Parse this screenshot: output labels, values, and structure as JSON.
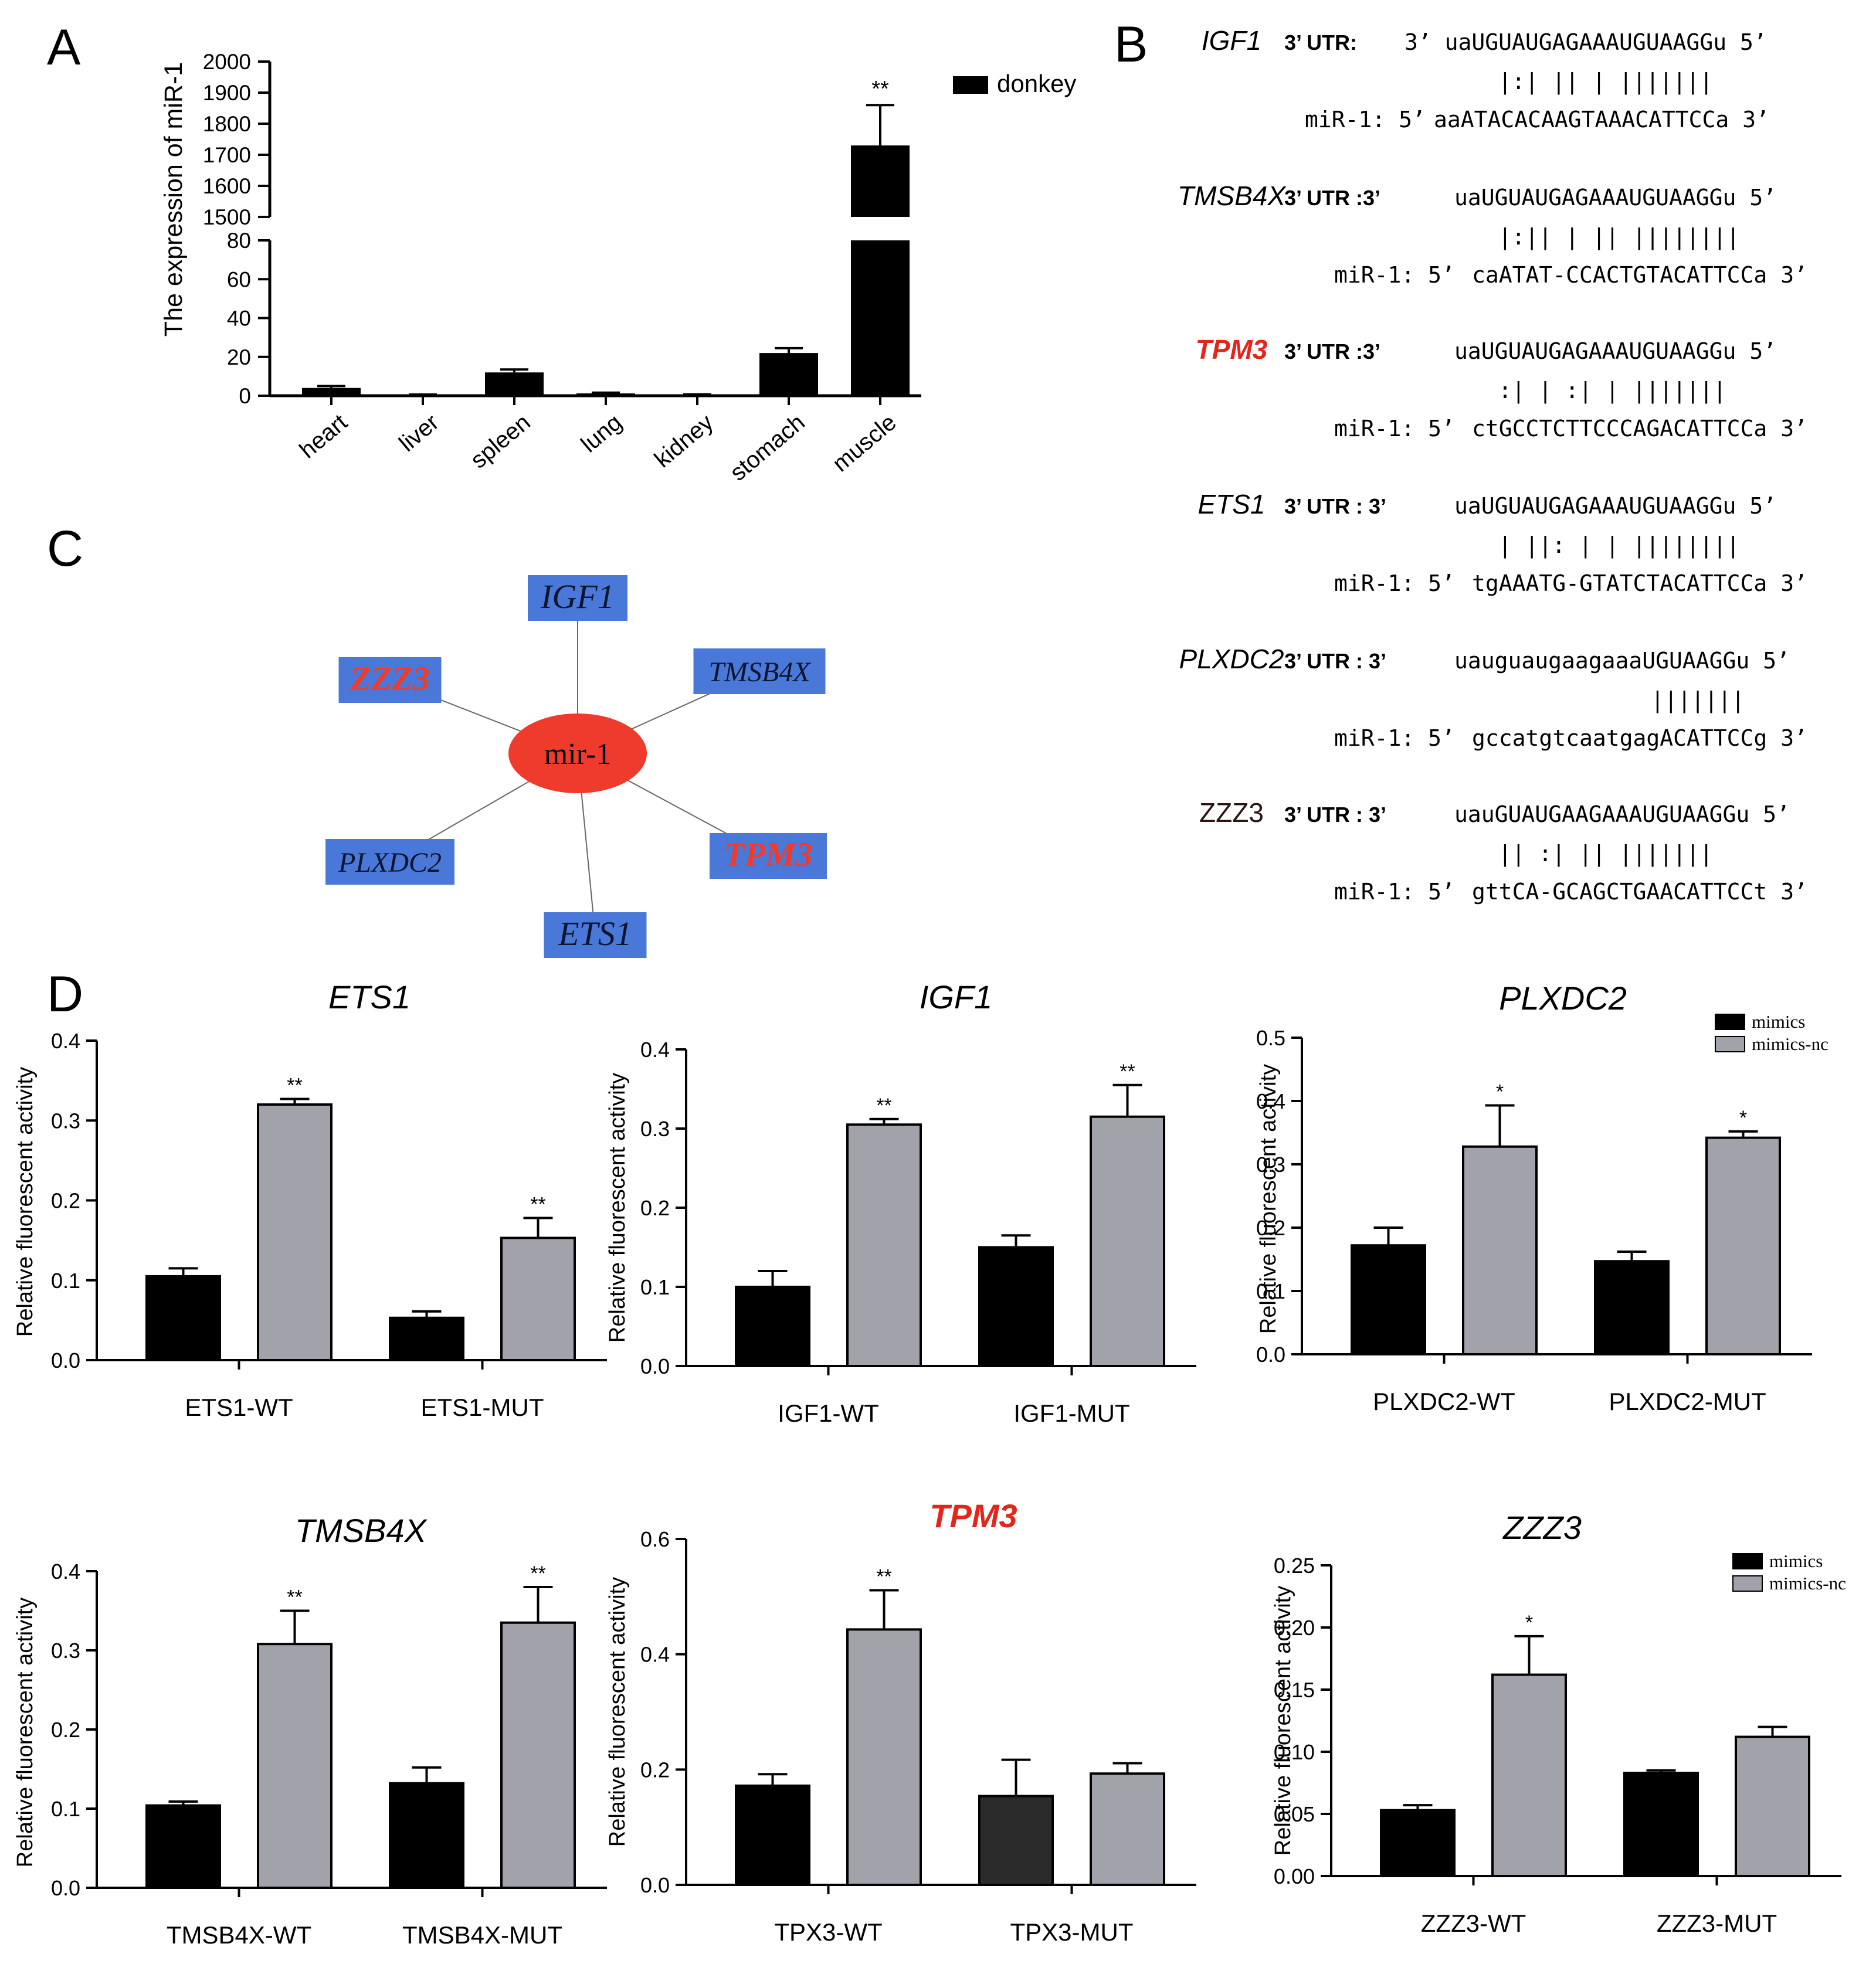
{
  "colors": {
    "bar_black": "#000000",
    "bar_gray": "#a2a2aa",
    "bar_dark": "#2b2b2b",
    "node_blue": "#4a78d8",
    "node_red": "#ef3b2c",
    "red_text": "#e1261c",
    "axis": "#000000"
  },
  "panel_labels": {
    "A": "A",
    "B": "B",
    "C": "C",
    "D": "D"
  },
  "chart_data": [
    {
      "id": "A",
      "type": "bar",
      "title": "",
      "ylabel": "The expression of miR-1",
      "xlabel": "",
      "legend": [
        "donkey"
      ],
      "categories": [
        "heart",
        "liver",
        "spleen",
        "lung",
        "kidney",
        "stomach",
        "muscle"
      ],
      "values": [
        4,
        0.4,
        12,
        1.2,
        0.5,
        22,
        1730
      ],
      "errors": [
        1,
        0.2,
        1.5,
        0.4,
        0.2,
        2.5,
        130
      ],
      "significance": [
        "",
        "",
        "",
        "",
        "",
        "",
        "**"
      ],
      "y_lower_range": [
        0,
        80
      ],
      "y_lower_ticks": [
        "0",
        "20",
        "40",
        "60",
        "80"
      ],
      "y_upper_range": [
        1500,
        2000
      ],
      "y_upper_ticks": [
        "1500",
        "1600",
        "1700",
        "1800",
        "1900",
        "2000"
      ]
    },
    {
      "id": "ETS1",
      "type": "bar",
      "title": "ETS1",
      "title_color": "black",
      "ylabel": "Relative fluorescent activity",
      "ylim": [
        0,
        0.4
      ],
      "yticks": [
        "0.0",
        "0.1",
        "0.2",
        "0.3",
        "0.4"
      ],
      "groups": [
        "ETS1-WT",
        "ETS1-MUT"
      ],
      "series": [
        {
          "name": "mimics",
          "values": [
            0.105,
            0.053
          ],
          "errors": [
            0.01,
            0.008
          ]
        },
        {
          "name": "mimics-nc",
          "values": [
            0.32,
            0.153
          ],
          "errors": [
            0.007,
            0.025
          ]
        }
      ],
      "significance": [
        "**",
        "**"
      ]
    },
    {
      "id": "IGF1",
      "type": "bar",
      "title": "IGF1",
      "title_color": "black",
      "ylabel": "Relative fluorescent activity",
      "ylim": [
        0,
        0.4
      ],
      "yticks": [
        "0.0",
        "0.1",
        "0.2",
        "0.3",
        "0.4"
      ],
      "groups": [
        "IGF1-WT",
        "IGF1-MUT"
      ],
      "series": [
        {
          "name": "mimics",
          "values": [
            0.1,
            0.15
          ],
          "errors": [
            0.02,
            0.015
          ]
        },
        {
          "name": "mimics-nc",
          "values": [
            0.305,
            0.315
          ],
          "errors": [
            0.007,
            0.04
          ]
        }
      ],
      "significance": [
        "**",
        "**"
      ]
    },
    {
      "id": "PLXDC2",
      "type": "bar",
      "title": "PLXDC2",
      "title_color": "black",
      "ylabel": "Relative fluorescent activity",
      "ylim": [
        0,
        0.5
      ],
      "yticks": [
        "0.0",
        "0.1",
        "0.2",
        "0.3",
        "0.4",
        "0.5"
      ],
      "groups": [
        "PLXDC2-WT",
        "PLXDC2-MUT"
      ],
      "series": [
        {
          "name": "mimics",
          "values": [
            0.172,
            0.147
          ],
          "errors": [
            0.028,
            0.015
          ]
        },
        {
          "name": "mimics-nc",
          "values": [
            0.328,
            0.342
          ],
          "errors": [
            0.065,
            0.01
          ]
        }
      ],
      "significance": [
        "*",
        "*"
      ],
      "legend": [
        "mimics",
        "mimics-nc"
      ]
    },
    {
      "id": "TMSB4X",
      "type": "bar",
      "title": "TMSB4X",
      "title_color": "black",
      "ylabel": "Relative fluorescent activity",
      "ylim": [
        0,
        0.4
      ],
      "yticks": [
        "0.0",
        "0.1",
        "0.2",
        "0.3",
        "0.4"
      ],
      "groups": [
        "TMSB4X-WT",
        "TMSB4X-MUT"
      ],
      "series": [
        {
          "name": "mimics",
          "values": [
            0.104,
            0.132
          ],
          "errors": [
            0.005,
            0.02
          ]
        },
        {
          "name": "mimics-nc",
          "values": [
            0.308,
            0.335
          ],
          "errors": [
            0.042,
            0.045
          ]
        }
      ],
      "significance": [
        "**",
        "**"
      ]
    },
    {
      "id": "TPM3",
      "type": "bar",
      "title": "TPM3",
      "title_color": "red",
      "ylabel": "Relative fluorescent activity",
      "ylim": [
        0,
        0.6
      ],
      "yticks": [
        "0.0",
        "0.2",
        "0.4",
        "0.6"
      ],
      "groups": [
        "TPX3-WT",
        "TPX3-MUT"
      ],
      "series": [
        {
          "name": "mimics",
          "values": [
            0.172,
            0.154
          ],
          "errors": [
            0.02,
            0.063
          ]
        },
        {
          "name": "mimics-nc",
          "values": [
            0.443,
            0.193
          ],
          "errors": [
            0.068,
            0.018
          ]
        }
      ],
      "significance": [
        "**",
        ""
      ]
    },
    {
      "id": "ZZZ3",
      "type": "bar",
      "title": "ZZZ3",
      "title_color": "black",
      "ylabel": "Relative fluorescent activity",
      "ylim": [
        0,
        0.25
      ],
      "yticks": [
        "0.00",
        "0.05",
        "0.10",
        "0.15",
        "0.20",
        "0.25"
      ],
      "groups": [
        "ZZZ3-WT",
        "ZZZ3-MUT"
      ],
      "series": [
        {
          "name": "mimics",
          "values": [
            0.053,
            0.083
          ],
          "errors": [
            0.004,
            0.002
          ]
        },
        {
          "name": "mimics-nc",
          "values": [
            0.162,
            0.112
          ],
          "errors": [
            0.031,
            0.008
          ]
        }
      ],
      "significance": [
        "*",
        ""
      ],
      "legend": [
        "mimics",
        "mimics-nc"
      ]
    }
  ],
  "alignments": [
    {
      "gene": "IGF1",
      "gene_color": "black",
      "utr_label": "3’ UTR:",
      "utr_seq": "3’  uaUGUAUGAGAAAUGUAAGGu  5’",
      "pairs": "|:|  ||    |   |||||||",
      "mir_label": "miR-1: 5’",
      "mir_seq": "aaATACACAAGTAAACATTCCa  3’"
    },
    {
      "gene": "TMSB4X",
      "gene_color": "black",
      "utr_label": "3’ UTR :3’",
      "utr_seq": "uaUGUAUGAGAAAUGUAAGGu  5’",
      "pairs": "|:||  |   ||  ||||||||",
      "mir_label": "miR-1: 5’",
      "mir_seq": "caATAT-CCACTGTACATTCCa  3’"
    },
    {
      "gene": "TPM3",
      "gene_color": "red",
      "utr_label": "3’ UTR :3’",
      "utr_seq": "uaUGUAUGAGAAAUGUAAGGu  5’",
      "pairs": ":|  |  :|  |    |||||||",
      "mir_label": "miR-1: 5’",
      "mir_seq": "ctGCCTCTTCCCAGACATTCCa  3’"
    },
    {
      "gene": "ETS1",
      "gene_color": "black",
      "utr_label": "3’ UTR  : 3’",
      "utr_seq": "uaUGUAUGAGAAAUGUAAGGu  5’",
      "pairs": "|  ||:   |  |  ||||||||",
      "mir_label": "miR-1: 5’",
      "mir_seq": "tgAAATG-GTATCTACATTCCa  3’"
    },
    {
      "gene": "PLXDC2",
      "gene_color": "black",
      "utr_label": "3’ UTR  : 3’",
      "utr_seq": "uauguaugaagaaaUGUAAGGu  5’",
      "pairs": "|||||||",
      "mir_label": "miR-1: 5’",
      "mir_seq": "gccatgtcaatgagACATTCCg  3’"
    },
    {
      "gene": "ZZZ3",
      "gene_color": "dark",
      "utr_label": "3’ UTR  : 3’",
      "utr_seq": "uauGUAUGAAGAAAUGUAAGGu  5’",
      "pairs": "||  :|    ||    |||||||",
      "mir_label": "miR-1: 5’",
      "mir_seq": "gttCA-GCAGCTGAACATTCCt  3’"
    }
  ],
  "network": {
    "center": "mir-1",
    "nodes": [
      {
        "label": "IGF1",
        "color": "dark"
      },
      {
        "label": "TMSB4X",
        "color": "dark"
      },
      {
        "label": "TPM3",
        "color": "red"
      },
      {
        "label": "ETS1",
        "color": "dark"
      },
      {
        "label": "PLXDC2",
        "color": "dark"
      },
      {
        "label": "ZZZ3",
        "color": "red"
      }
    ]
  }
}
